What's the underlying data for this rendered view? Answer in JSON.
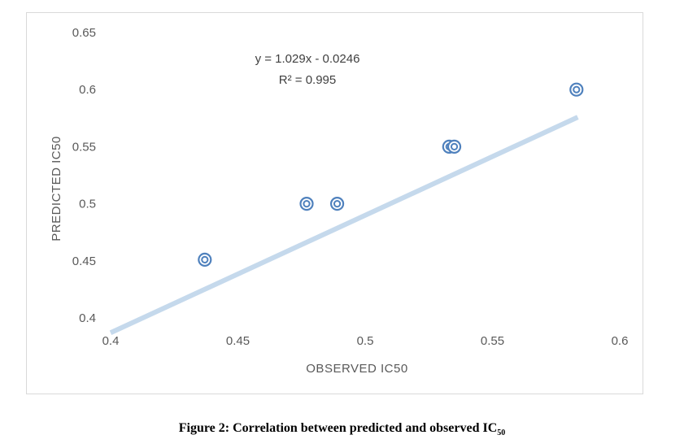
{
  "chart_data": {
    "type": "scatter",
    "xlabel": "OBSERVED IC50",
    "ylabel": "PREDICTED IC50",
    "xlim": [
      0.4,
      0.6
    ],
    "ylim": [
      0.4,
      0.65
    ],
    "x_ticks": [
      "0.4",
      "0.45",
      "0.5",
      "0.55",
      "0.6"
    ],
    "y_ticks": [
      "0.4",
      "0.45",
      "0.5",
      "0.55",
      "0.6",
      "0.65"
    ],
    "x_tick_values": [
      0.4,
      0.45,
      0.5,
      0.55,
      0.6
    ],
    "y_tick_values": [
      0.4,
      0.45,
      0.5,
      0.55,
      0.6,
      0.65
    ],
    "points": [
      {
        "x": 0.437,
        "y": 0.451
      },
      {
        "x": 0.477,
        "y": 0.5
      },
      {
        "x": 0.489,
        "y": 0.5
      },
      {
        "x": 0.533,
        "y": 0.55
      },
      {
        "x": 0.535,
        "y": 0.55
      },
      {
        "x": 0.583,
        "y": 0.6
      }
    ],
    "trendline": {
      "slope": 1.029,
      "intercept": -0.0246,
      "equation": "y = 1.029x - 0.0246",
      "r_squared": "R² = 0.995"
    },
    "grid": false,
    "colors": {
      "marker": "#4f81bd",
      "trendline": "#c5d9ec"
    }
  },
  "caption": {
    "text": "Figure 2: Correlation between predicted and observed IC",
    "subscript": "50"
  }
}
